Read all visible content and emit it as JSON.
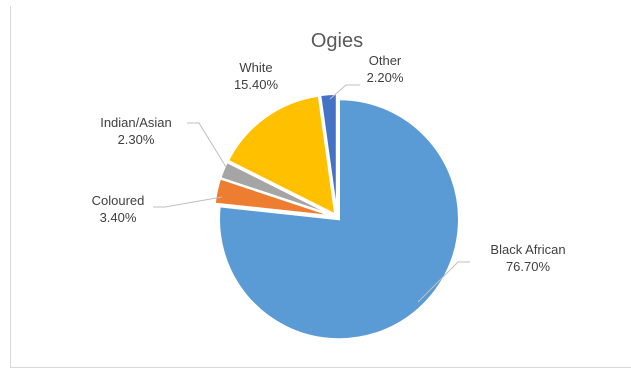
{
  "chart_data": {
    "type": "pie",
    "title": "Ogies",
    "legend": "none",
    "slices": [
      {
        "label": "Black African",
        "percent_label": "76.70%",
        "value": 76.7,
        "color": "#5b9bd5"
      },
      {
        "label": "Coloured",
        "percent_label": "3.40%",
        "value": 3.4,
        "color": "#ed7d31"
      },
      {
        "label": "Indian/Asian",
        "percent_label": "2.30%",
        "value": 2.3,
        "color": "#a5a5a5"
      },
      {
        "label": "White",
        "percent_label": "15.40%",
        "value": 15.4,
        "color": "#ffc000"
      },
      {
        "label": "Other",
        "percent_label": "2.20%",
        "value": 2.2,
        "color": "#4472c4"
      }
    ]
  }
}
